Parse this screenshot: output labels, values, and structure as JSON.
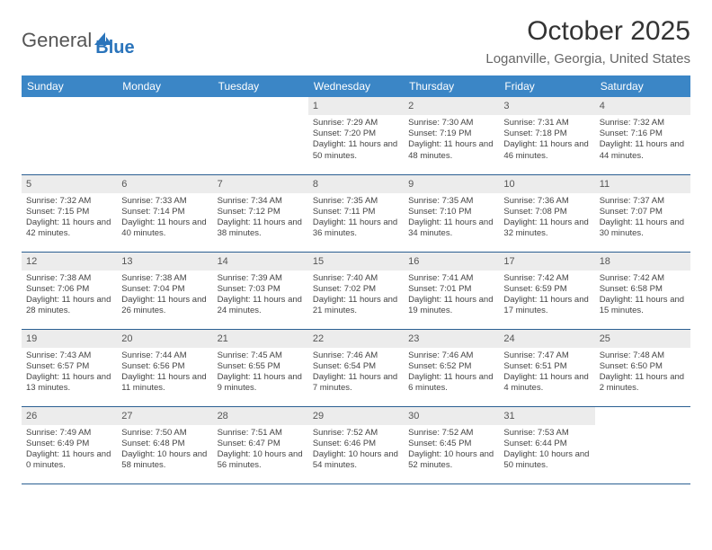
{
  "logo": {
    "word1": "General",
    "word2": "Blue"
  },
  "title": "October 2025",
  "location": "Loganville, Georgia, United States",
  "colors": {
    "header_bg": "#3b86c6",
    "daynum_bg": "#ececec",
    "rule": "#2b5f92",
    "logo_blue": "#2a74bb"
  },
  "weekdays": [
    "Sunday",
    "Monday",
    "Tuesday",
    "Wednesday",
    "Thursday",
    "Friday",
    "Saturday"
  ],
  "weeks": [
    [
      null,
      null,
      null,
      {
        "n": "1",
        "sr": "7:29 AM",
        "ss": "7:20 PM",
        "dl": "11 hours and 50 minutes."
      },
      {
        "n": "2",
        "sr": "7:30 AM",
        "ss": "7:19 PM",
        "dl": "11 hours and 48 minutes."
      },
      {
        "n": "3",
        "sr": "7:31 AM",
        "ss": "7:18 PM",
        "dl": "11 hours and 46 minutes."
      },
      {
        "n": "4",
        "sr": "7:32 AM",
        "ss": "7:16 PM",
        "dl": "11 hours and 44 minutes."
      }
    ],
    [
      {
        "n": "5",
        "sr": "7:32 AM",
        "ss": "7:15 PM",
        "dl": "11 hours and 42 minutes."
      },
      {
        "n": "6",
        "sr": "7:33 AM",
        "ss": "7:14 PM",
        "dl": "11 hours and 40 minutes."
      },
      {
        "n": "7",
        "sr": "7:34 AM",
        "ss": "7:12 PM",
        "dl": "11 hours and 38 minutes."
      },
      {
        "n": "8",
        "sr": "7:35 AM",
        "ss": "7:11 PM",
        "dl": "11 hours and 36 minutes."
      },
      {
        "n": "9",
        "sr": "7:35 AM",
        "ss": "7:10 PM",
        "dl": "11 hours and 34 minutes."
      },
      {
        "n": "10",
        "sr": "7:36 AM",
        "ss": "7:08 PM",
        "dl": "11 hours and 32 minutes."
      },
      {
        "n": "11",
        "sr": "7:37 AM",
        "ss": "7:07 PM",
        "dl": "11 hours and 30 minutes."
      }
    ],
    [
      {
        "n": "12",
        "sr": "7:38 AM",
        "ss": "7:06 PM",
        "dl": "11 hours and 28 minutes."
      },
      {
        "n": "13",
        "sr": "7:38 AM",
        "ss": "7:04 PM",
        "dl": "11 hours and 26 minutes."
      },
      {
        "n": "14",
        "sr": "7:39 AM",
        "ss": "7:03 PM",
        "dl": "11 hours and 24 minutes."
      },
      {
        "n": "15",
        "sr": "7:40 AM",
        "ss": "7:02 PM",
        "dl": "11 hours and 21 minutes."
      },
      {
        "n": "16",
        "sr": "7:41 AM",
        "ss": "7:01 PM",
        "dl": "11 hours and 19 minutes."
      },
      {
        "n": "17",
        "sr": "7:42 AM",
        "ss": "6:59 PM",
        "dl": "11 hours and 17 minutes."
      },
      {
        "n": "18",
        "sr": "7:42 AM",
        "ss": "6:58 PM",
        "dl": "11 hours and 15 minutes."
      }
    ],
    [
      {
        "n": "19",
        "sr": "7:43 AM",
        "ss": "6:57 PM",
        "dl": "11 hours and 13 minutes."
      },
      {
        "n": "20",
        "sr": "7:44 AM",
        "ss": "6:56 PM",
        "dl": "11 hours and 11 minutes."
      },
      {
        "n": "21",
        "sr": "7:45 AM",
        "ss": "6:55 PM",
        "dl": "11 hours and 9 minutes."
      },
      {
        "n": "22",
        "sr": "7:46 AM",
        "ss": "6:54 PM",
        "dl": "11 hours and 7 minutes."
      },
      {
        "n": "23",
        "sr": "7:46 AM",
        "ss": "6:52 PM",
        "dl": "11 hours and 6 minutes."
      },
      {
        "n": "24",
        "sr": "7:47 AM",
        "ss": "6:51 PM",
        "dl": "11 hours and 4 minutes."
      },
      {
        "n": "25",
        "sr": "7:48 AM",
        "ss": "6:50 PM",
        "dl": "11 hours and 2 minutes."
      }
    ],
    [
      {
        "n": "26",
        "sr": "7:49 AM",
        "ss": "6:49 PM",
        "dl": "11 hours and 0 minutes."
      },
      {
        "n": "27",
        "sr": "7:50 AM",
        "ss": "6:48 PM",
        "dl": "10 hours and 58 minutes."
      },
      {
        "n": "28",
        "sr": "7:51 AM",
        "ss": "6:47 PM",
        "dl": "10 hours and 56 minutes."
      },
      {
        "n": "29",
        "sr": "7:52 AM",
        "ss": "6:46 PM",
        "dl": "10 hours and 54 minutes."
      },
      {
        "n": "30",
        "sr": "7:52 AM",
        "ss": "6:45 PM",
        "dl": "10 hours and 52 minutes."
      },
      {
        "n": "31",
        "sr": "7:53 AM",
        "ss": "6:44 PM",
        "dl": "10 hours and 50 minutes."
      },
      null
    ]
  ],
  "labels": {
    "sunrise": "Sunrise: ",
    "sunset": "Sunset: ",
    "daylight": "Daylight: "
  }
}
